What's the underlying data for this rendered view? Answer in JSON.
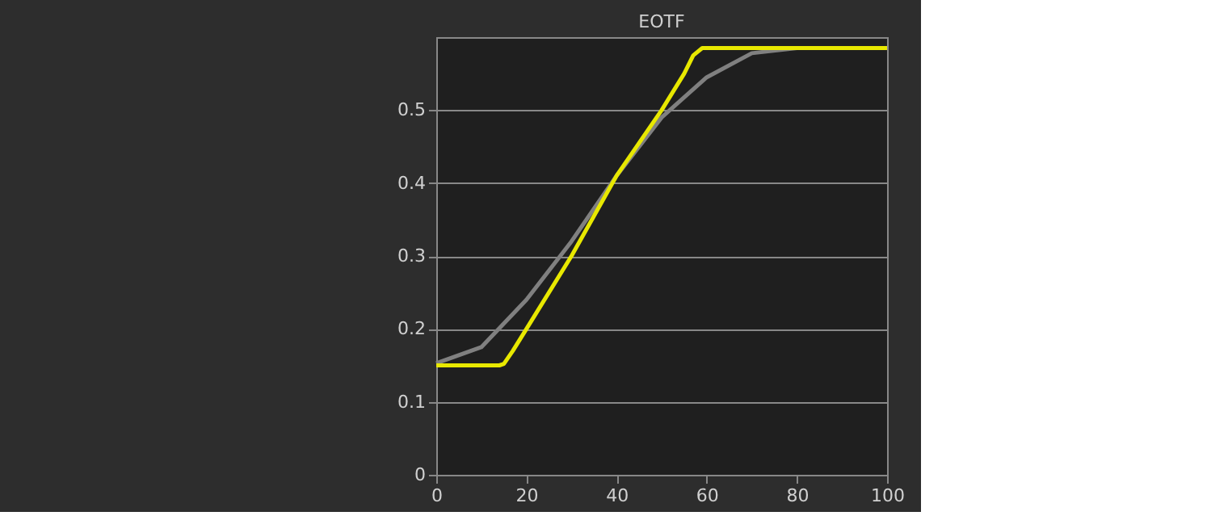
{
  "chart_data": {
    "type": "line",
    "title": "EOTF",
    "xlim": [
      0,
      100
    ],
    "xticks": [
      0,
      20,
      40,
      60,
      80,
      100
    ],
    "ylim": [
      0,
      0.6
    ],
    "yticks": [
      0,
      0.1,
      0.2,
      0.3,
      0.4,
      0.5
    ],
    "grid": "y",
    "marker": "none",
    "line_style": "solid",
    "series": [
      {
        "color": "#808080",
        "x": [
          0,
          10,
          20,
          30,
          40,
          50,
          60,
          70,
          80,
          100
        ],
        "values": [
          0.153,
          0.175,
          0.24,
          0.32,
          0.41,
          0.49,
          0.545,
          0.578,
          0.585,
          0.585
        ]
      },
      {
        "color": "#e8e800",
        "x": [
          0,
          14,
          15,
          17,
          20,
          30,
          40,
          50,
          55,
          57,
          59,
          100
        ],
        "values": [
          0.15,
          0.15,
          0.152,
          0.17,
          0.2,
          0.3,
          0.41,
          0.5,
          0.55,
          0.575,
          0.585,
          0.585
        ]
      }
    ]
  }
}
